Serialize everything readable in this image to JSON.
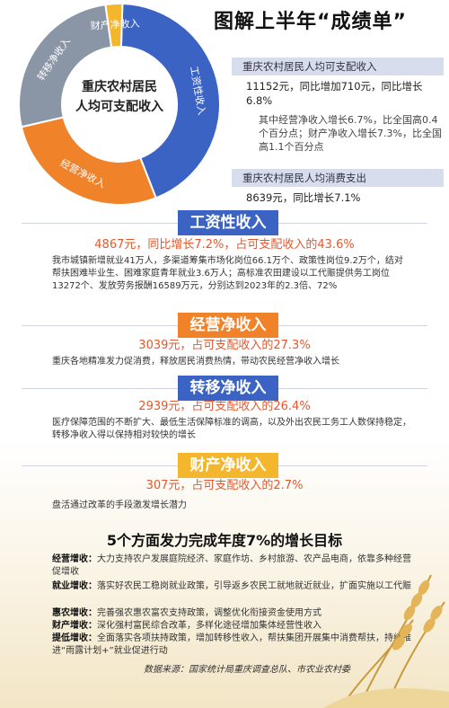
{
  "title": "图解上半年“成绩单”",
  "donut": {
    "center_line1": "重庆农村居民",
    "center_line2": "人均可支配收入",
    "segments": [
      {
        "label": "工资性收入",
        "color": "#3a63c4",
        "value": 43.6
      },
      {
        "label": "经营净收入",
        "color": "#f0822a",
        "value": 27.3
      },
      {
        "label": "转移净收入",
        "color": "#8a95a6",
        "value": 26.4
      },
      {
        "label": "财产净收入",
        "color": "#f3b62c",
        "value": 2.7
      }
    ]
  },
  "stats": {
    "income_bar": "重庆农村居民人均可支配收入",
    "income_text": "11152元，同比增加710元，同比增长6.8%",
    "income_sub": "其中经营净收入增长6.7%，比全国高0.4个百分点；财产净收入增长7.3%，比全国高1.1个百分点",
    "spend_bar": "重庆农村居民人均消费支出",
    "spend_text": "8639元，同比增长7.1%"
  },
  "sections": [
    {
      "title": "工资性收入",
      "color": "#3a63c4",
      "headline": "4867元，同比增长7.2%，占可支配收入的43.6%",
      "headline_color": "#e4582e",
      "body": "我市城镇新增就业41万人，多渠道筹集市场化岗位66.1万个、政策性岗位9.2万个，结对帮扶困难毕业生、困难家庭青年就业3.6万人；高标准农田建设以工代赈提供务工岗位13272个、发放劳务报酬16589万元，分别达到2023年的2.3倍、72%"
    },
    {
      "title": "经营净收入",
      "color": "#f0822a",
      "headline": "3039元，占可支配收入的27.3%",
      "headline_color": "#e4582e",
      "body": "重庆各地精准发力促消费，释放居民消费热情，带动农民经营净收入增长"
    },
    {
      "title": "转移净收入",
      "color": "#3a63c4",
      "headline": "2939元，占可支配收入的26.4%",
      "headline_color": "#e4582e",
      "body": "医疗保障范围的不断扩大、最低生活保障标准的调高，以及外出农民工务工人数保持稳定，转移净收入得以保持相对较快的增长"
    },
    {
      "title": "财产净收入",
      "color": "#f3b62c",
      "headline": "307元，占可支配收入的2.7%",
      "headline_color": "#e4582e",
      "body": "盘活通过改革的手段激发增长潜力"
    }
  ],
  "goals": {
    "title": "5个方面发力完成年度7%的增长目标",
    "items": [
      {
        "label": "经营增收：",
        "text": "大力支持农户发展庭院经济、家庭作坊、乡村旅游、农产品电商，依靠多种经营促增收"
      },
      {
        "label": "就业增收：",
        "text": "落实好农民工稳岗就业政策，引导返乡农民工就地就近就业，扩面实施以工代赈"
      },
      {
        "label": "惠农增收：",
        "text": "完善强农惠农富农支持政策，调整优化衔接资金使用方式"
      },
      {
        "label": "财产增收：",
        "text": "深化强村富民综合改革，多样化途径增加集体经营性收入"
      },
      {
        "label": "提低增收：",
        "text": "全面落实各项扶持政策，增加转移性收入，帮扶集团开展集中消费帮扶，持续推进“雨露计划+”就业促进行动"
      }
    ]
  },
  "source": "数据来源：国家统计局重庆调查总队、市农业农村委"
}
